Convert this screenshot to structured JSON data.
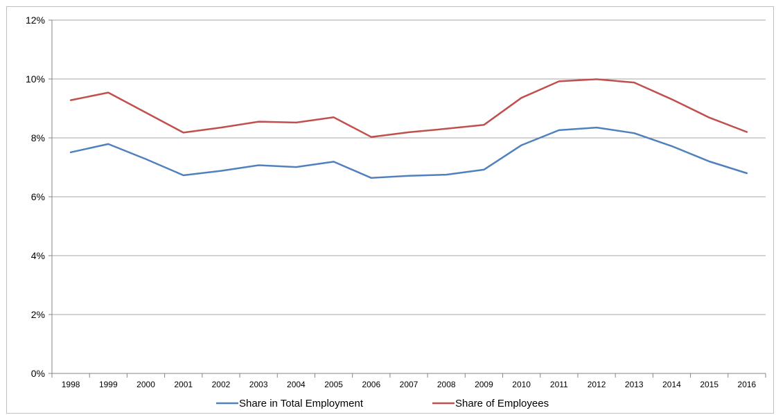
{
  "chart_data": {
    "type": "line",
    "title": "",
    "xlabel": "",
    "ylabel": "",
    "x": [
      "1998",
      "1999",
      "2000",
      "2001",
      "2002",
      "2003",
      "2004",
      "2005",
      "2006",
      "2007",
      "2008",
      "2009",
      "2010",
      "2011",
      "2012",
      "2013",
      "2014",
      "2015",
      "2016"
    ],
    "ylim": [
      0,
      12
    ],
    "yticks": [
      0,
      2,
      4,
      6,
      8,
      10,
      12
    ],
    "ytick_labels": [
      "0%",
      "2%",
      "4%",
      "6%",
      "8%",
      "10%",
      "12%"
    ],
    "grid": "horizontal",
    "legend_position": "bottom",
    "series": [
      {
        "name": "Share in Total Employment",
        "color": "#4f81bd",
        "values": [
          7.51,
          7.79,
          7.28,
          6.73,
          6.88,
          7.07,
          7.01,
          7.19,
          6.64,
          6.71,
          6.75,
          6.92,
          7.75,
          8.26,
          8.35,
          8.16,
          7.72,
          7.2,
          6.8
        ]
      },
      {
        "name": "Share of Employees",
        "color": "#c0504d",
        "values": [
          9.28,
          9.54,
          8.86,
          8.18,
          8.35,
          8.55,
          8.52,
          8.7,
          8.03,
          8.19,
          8.31,
          8.44,
          9.36,
          9.92,
          9.99,
          9.88,
          9.31,
          8.69,
          8.2
        ]
      }
    ]
  }
}
